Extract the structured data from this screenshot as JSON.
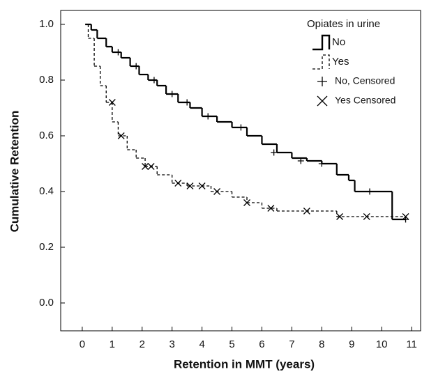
{
  "chart_data": {
    "type": "step",
    "x_label": "Retention in MMT (years)",
    "y_label": "Cumulative Retention",
    "xlim": [
      -0.72,
      11.3
    ],
    "ylim": [
      -0.1,
      1.05
    ],
    "xticks": [
      0,
      1,
      2,
      3,
      4,
      5,
      6,
      7,
      8,
      9,
      10,
      11
    ],
    "yticks": [
      {
        "value": 0,
        "label": "0.0"
      },
      {
        "value": 0.2,
        "label": "0.2"
      },
      {
        "value": 0.4,
        "label": "0.4"
      },
      {
        "value": 0.6,
        "label": "0.6"
      },
      {
        "value": 0.8,
        "label": "0.8"
      },
      {
        "value": 1,
        "label": "1.0"
      }
    ],
    "legend_title": "Opiates in urine",
    "legend_position": "upper right",
    "series": [
      {
        "name": "No",
        "color": "#000000",
        "dash": false,
        "x": [
          0.1,
          0.3,
          0.5,
          0.8,
          1.0,
          1.3,
          1.6,
          1.9,
          2.2,
          2.5,
          2.8,
          3.2,
          3.6,
          4.0,
          4.5,
          5.0,
          5.5,
          6.0,
          6.5,
          7.0,
          7.5,
          8.0,
          8.5,
          8.9,
          9.1,
          10.35,
          10.8
        ],
        "values": [
          1.0,
          0.98,
          0.95,
          0.92,
          0.9,
          0.88,
          0.85,
          0.82,
          0.8,
          0.78,
          0.75,
          0.72,
          0.7,
          0.67,
          0.65,
          0.63,
          0.6,
          0.57,
          0.54,
          0.52,
          0.51,
          0.5,
          0.46,
          0.44,
          0.4,
          0.3,
          0.3
        ]
      },
      {
        "name": "Yes",
        "color": "#000000",
        "dash": true,
        "x": [
          0.1,
          0.2,
          0.4,
          0.6,
          0.8,
          1.0,
          1.2,
          1.5,
          1.8,
          2.1,
          2.5,
          3.0,
          3.5,
          4.3,
          5.0,
          5.5,
          6.0,
          6.5,
          8.5,
          10.8
        ],
        "values": [
          1.0,
          0.95,
          0.85,
          0.78,
          0.72,
          0.65,
          0.6,
          0.55,
          0.52,
          0.49,
          0.46,
          0.43,
          0.42,
          0.4,
          0.38,
          0.36,
          0.34,
          0.33,
          0.31,
          0.31
        ]
      },
      {
        "name": "No, Censored",
        "color": "#000000",
        "marker": "plus",
        "x": [
          1.2,
          1.8,
          2.4,
          3.0,
          3.5,
          4.2,
          5.3,
          6.4,
          7.3,
          8.0,
          9.6,
          10.8
        ],
        "values": [
          0.9,
          0.85,
          0.8,
          0.75,
          0.72,
          0.67,
          0.63,
          0.54,
          0.51,
          0.5,
          0.4,
          0.3
        ]
      },
      {
        "name": "Yes Censored",
        "color": "#000000",
        "marker": "cross",
        "x": [
          1.0,
          1.3,
          2.1,
          2.3,
          3.2,
          3.6,
          4.0,
          4.5,
          5.5,
          6.3,
          7.5,
          8.6,
          9.5,
          10.8
        ],
        "values": [
          0.72,
          0.6,
          0.49,
          0.49,
          0.43,
          0.42,
          0.42,
          0.4,
          0.36,
          0.34,
          0.33,
          0.31,
          0.31,
          0.31
        ]
      }
    ]
  }
}
